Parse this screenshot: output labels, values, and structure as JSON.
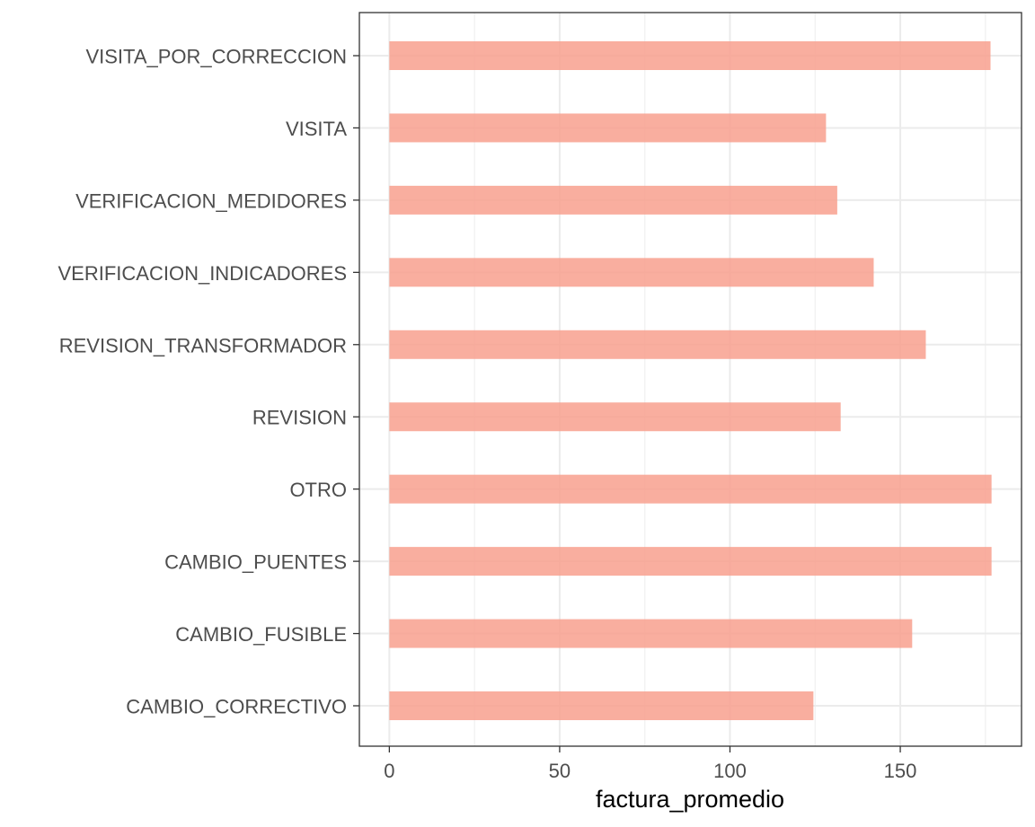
{
  "chart_data": {
    "type": "bar",
    "orientation": "horizontal",
    "categories": [
      "CAMBIO_CORRECTIVO",
      "CAMBIO_FUSIBLE",
      "CAMBIO_PUENTES",
      "OTRO",
      "REVISION",
      "REVISION_TRANSFORMADOR",
      "VERIFICACION_INDICADORES",
      "VERIFICACION_MEDIDORES",
      "VISITA",
      "VISITA_POR_CORRECCION"
    ],
    "values": [
      124.5,
      153.5,
      176.8,
      176.8,
      132.5,
      157.5,
      142.2,
      131.5,
      128.2,
      176.5
    ],
    "xlabel": "factura_promedio",
    "ylabel": "",
    "xlim": [
      -8.8,
      185.6
    ],
    "xticks": [
      0,
      50,
      100,
      150
    ],
    "xtick_labels": [
      "0",
      "50",
      "100",
      "150"
    ],
    "grid": true,
    "bar_color": "#F8A08E"
  }
}
